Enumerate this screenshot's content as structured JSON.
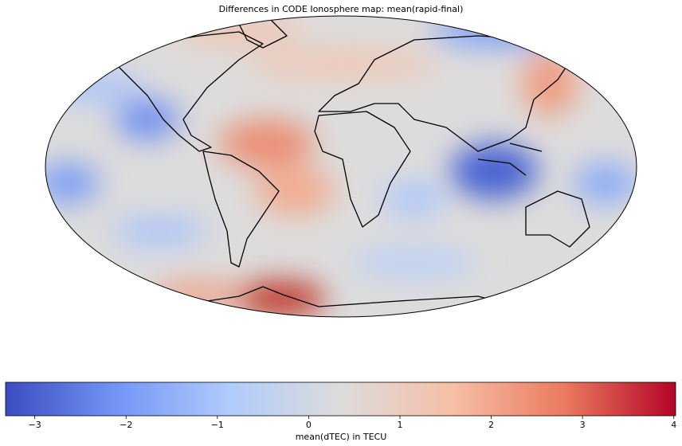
{
  "chart_data": {
    "type": "map",
    "title": "Differences in CODE Ionosphere map: mean(rapid-final)",
    "colorbar_label": "mean(dTEC) in TECU",
    "colormap": [
      "#3b4cc0",
      "#7396f5",
      "#b0cbfc",
      "#dddcdc",
      "#f6bfa6",
      "#ea7b60",
      "#b40426"
    ],
    "clim": [
      -3.32,
      4.02
    ],
    "cticks": [
      {
        "value": -3,
        "label": "−3"
      },
      {
        "value": -2,
        "label": "−2"
      },
      {
        "value": -1,
        "label": "−1"
      },
      0,
      1,
      2,
      3,
      4
    ]
  }
}
